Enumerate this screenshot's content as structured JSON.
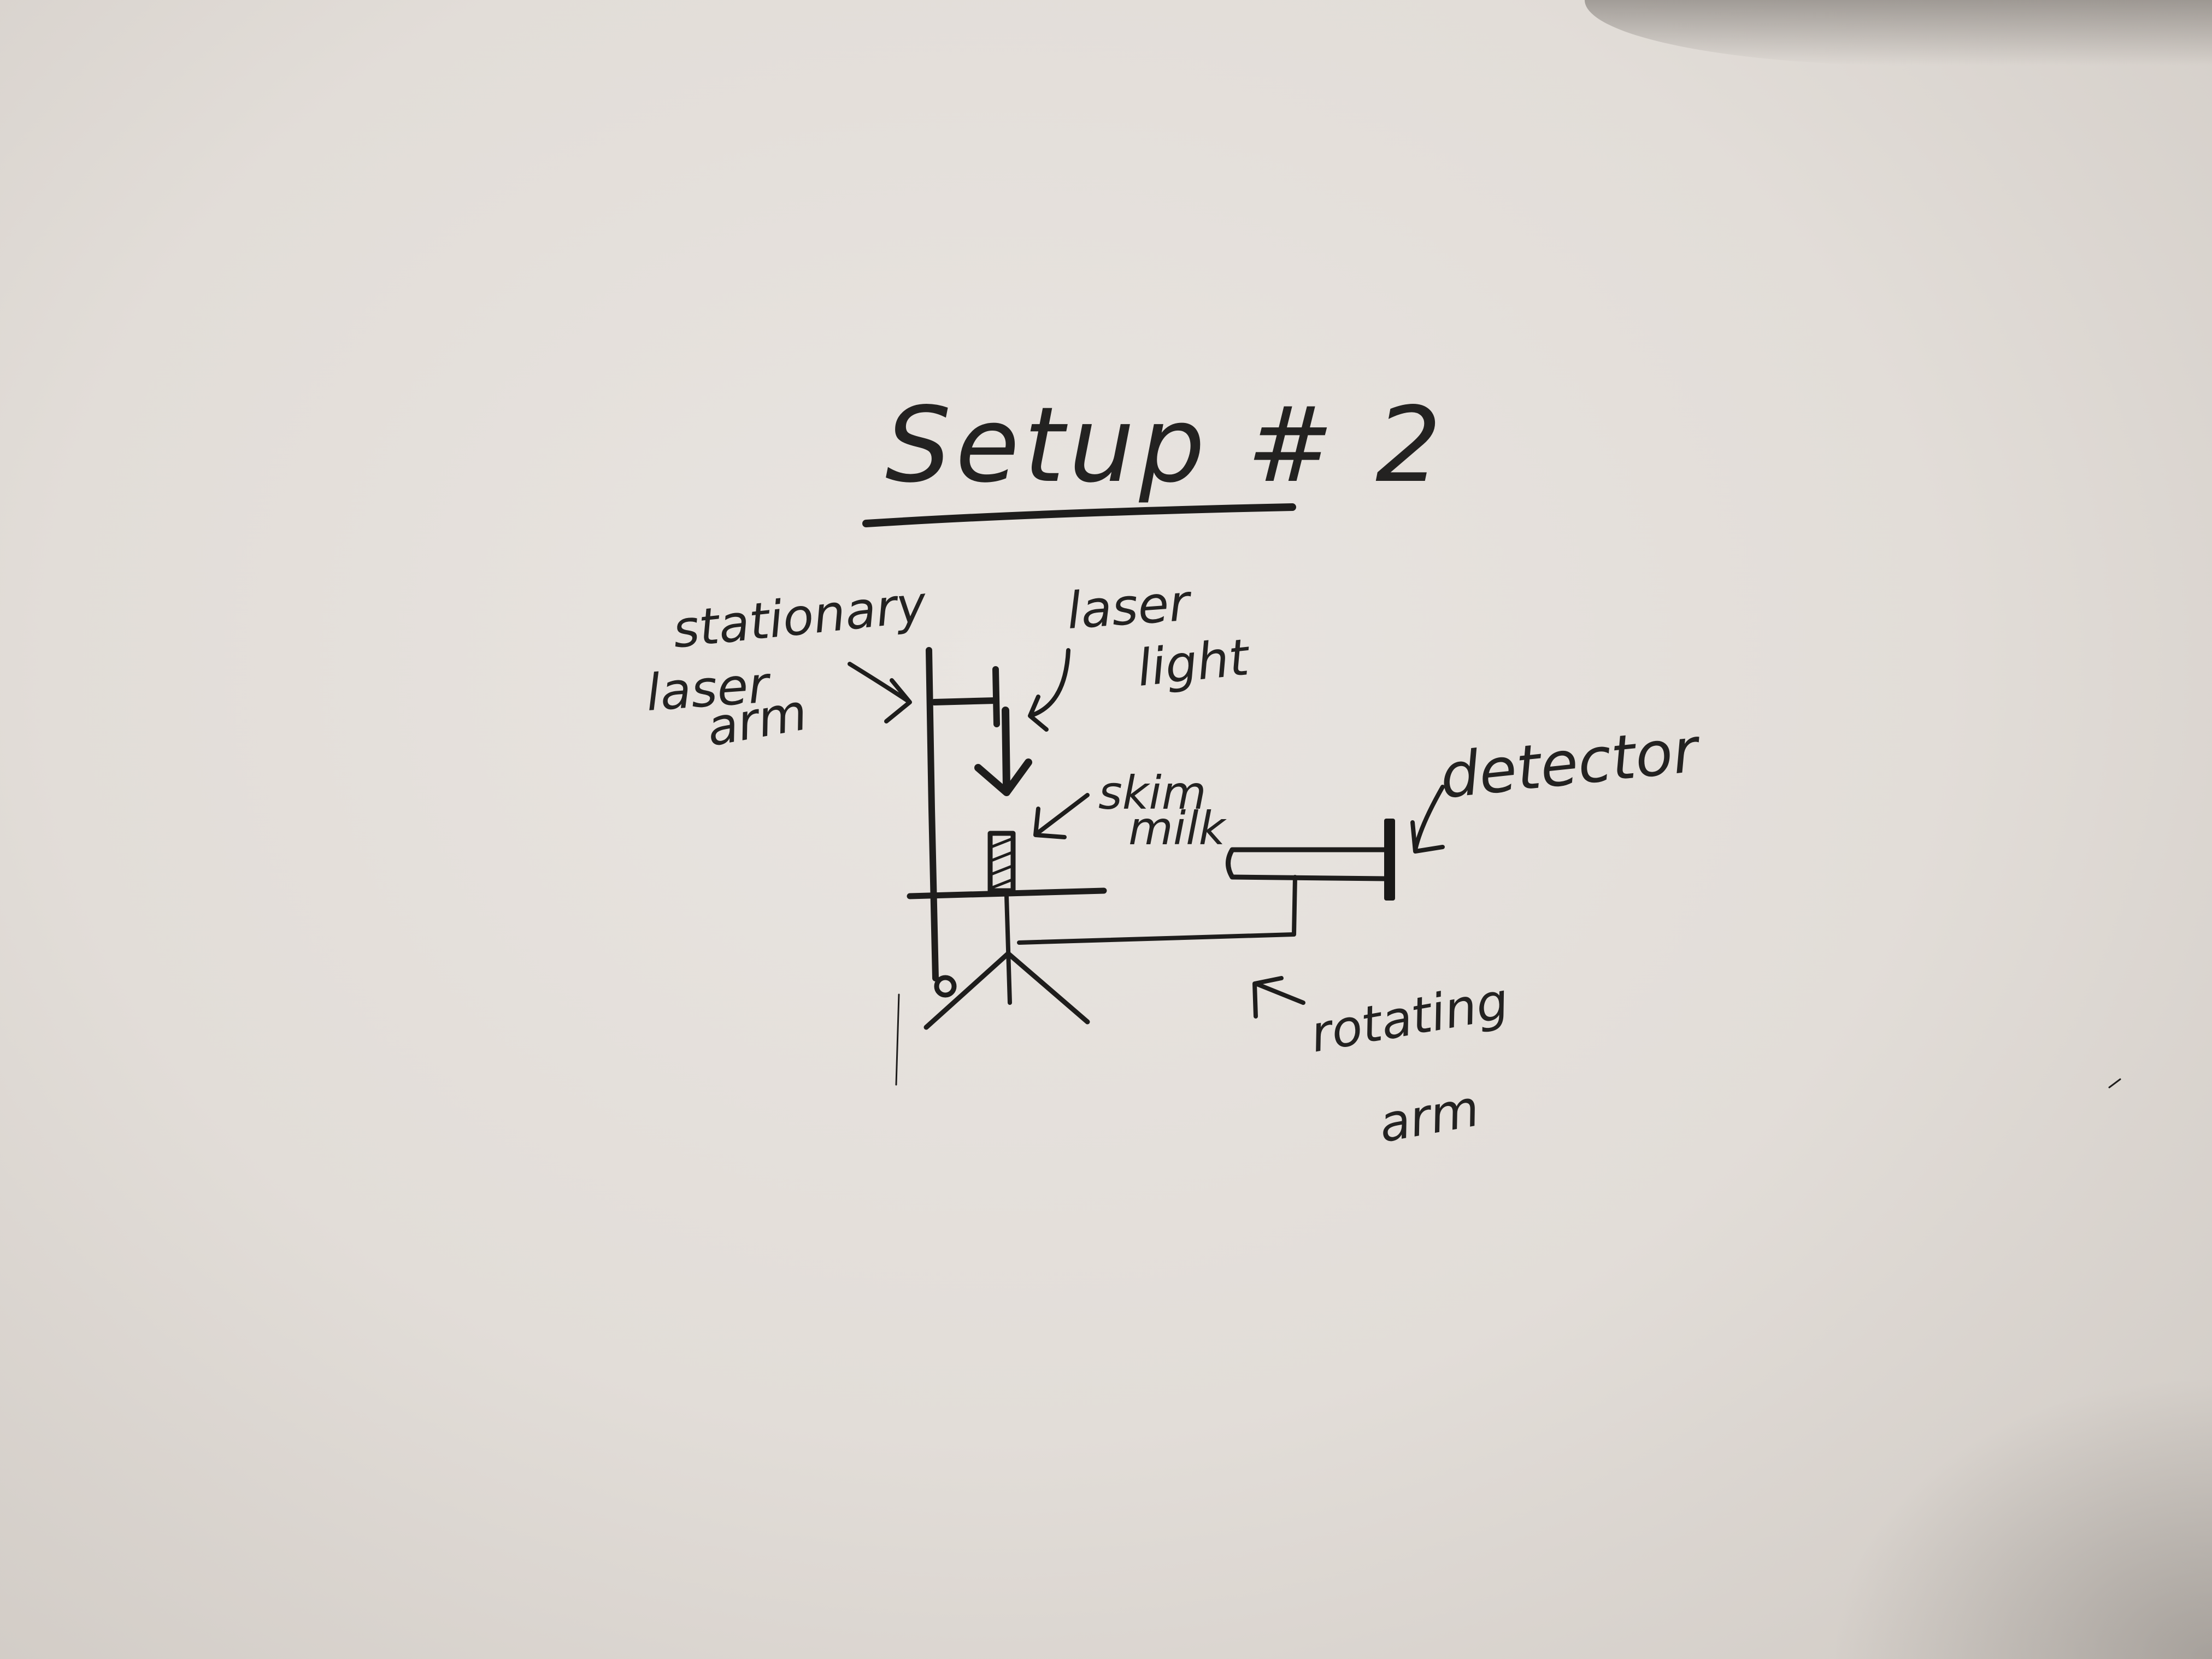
{
  "title": "Setup # 2",
  "labels": {
    "stationary": "stationary",
    "laser_arm_1": "laser",
    "laser_arm_2": "arm",
    "laser_light_1": "laser",
    "laser_light_2": "light",
    "skim_milk_1": "skim",
    "skim_milk_2": "milk",
    "detector": "detector",
    "rotating_arm_1": "rotating",
    "rotating_arm_2": "arm"
  },
  "colors": {
    "ink": "#1e1d1c",
    "paper": "#e4e0db"
  }
}
